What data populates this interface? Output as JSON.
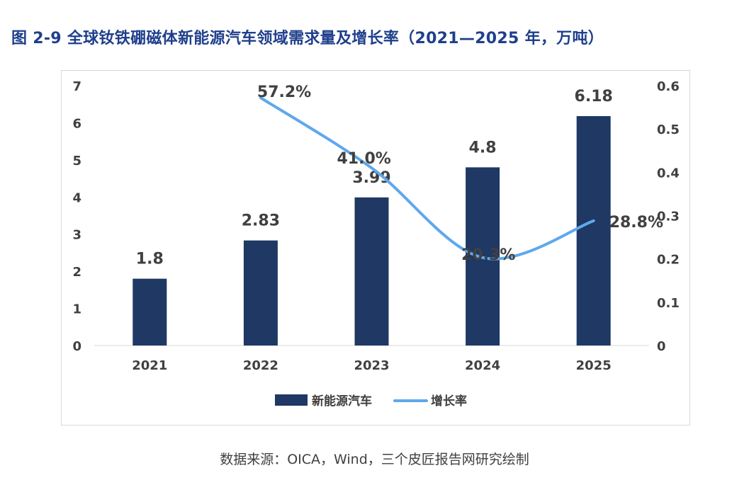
{
  "figure": {
    "title": "图 2-9 全球钕铁硼磁体新能源汽车领域需求量及增长率（2021—2025 年，万吨）",
    "source": "数据来源：OICA，Wind，三个皮匠报告网研究绘制"
  },
  "colors": {
    "bar": "#1f3864",
    "line": "#5fa8ec",
    "title": "#1f3f8c",
    "text": "#404040",
    "grid": "#d9d9d9"
  },
  "chart_data": {
    "type": "bar",
    "categories": [
      "2021",
      "2022",
      "2023",
      "2024",
      "2025"
    ],
    "series": [
      {
        "name": "新能源汽车",
        "type": "bar",
        "axis": "left",
        "values": [
          1.8,
          2.83,
          3.99,
          4.8,
          6.18
        ],
        "labels": [
          "1.8",
          "2.83",
          "3.99",
          "4.8",
          "6.18"
        ]
      },
      {
        "name": "增长率",
        "type": "line",
        "axis": "right",
        "values": [
          null,
          0.572,
          0.41,
          0.203,
          0.288
        ],
        "labels": [
          "",
          "57.2%",
          "41.0%",
          "20.3%",
          "28.8%"
        ]
      }
    ],
    "y_left": {
      "ylim": [
        0,
        7
      ],
      "ticks": [
        "0",
        "1",
        "2",
        "3",
        "4",
        "5",
        "6",
        "7"
      ]
    },
    "y_right": {
      "ylim": [
        0,
        0.6
      ],
      "ticks": [
        "0",
        "0.1",
        "0.2",
        "0.3",
        "0.4",
        "0.5",
        "0.6"
      ]
    },
    "legend": "bottom",
    "grid": false
  }
}
